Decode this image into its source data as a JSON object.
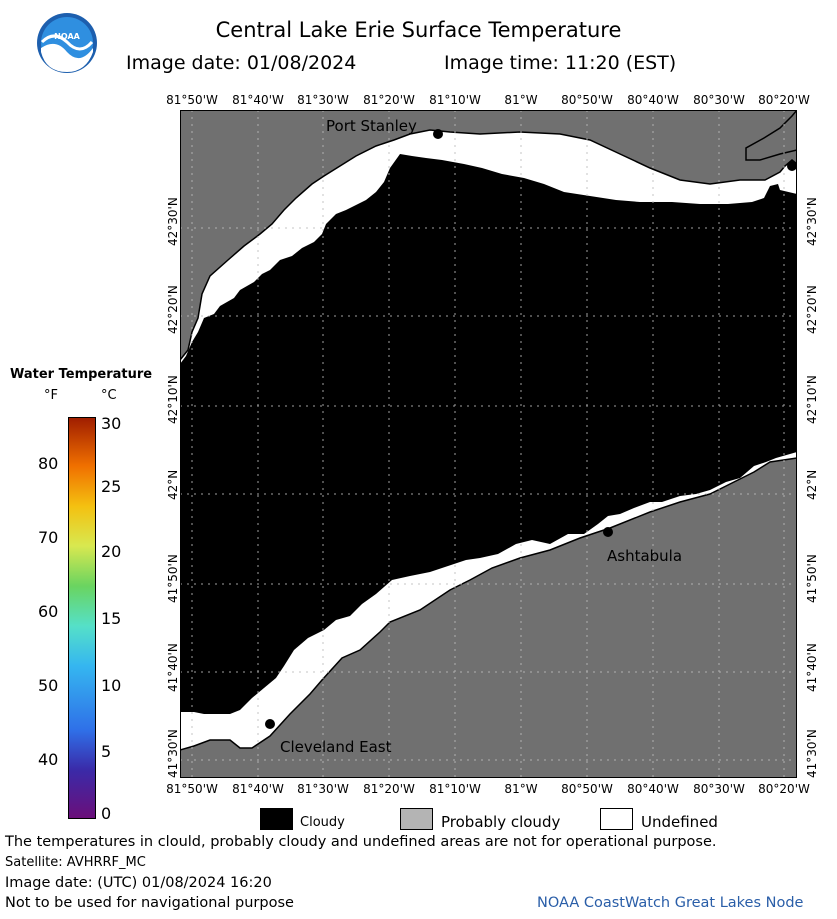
{
  "header": {
    "title": "Central Lake Erie Surface Temperature",
    "image_date": "Image date: 01/08/2024",
    "image_time": "Image time: 11:20 (EST)",
    "logo_text": "NOAA"
  },
  "map": {
    "lon_labels": [
      "81°50'W",
      "81°40'W",
      "81°30'W",
      "81°20'W",
      "81°10'W",
      "81°W",
      "80°50'W",
      "80°40'W",
      "80°30'W",
      "80°20'W"
    ],
    "lat_labels": [
      "42°30'N",
      "42°20'N",
      "42°10'N",
      "42°N",
      "41°50'N",
      "41°40'N",
      "41°30'N"
    ],
    "places": [
      "Port Stanley",
      "Ashtabula",
      "Cleveland East"
    ],
    "colors": {
      "land": "#707070",
      "cloudy": "#000000",
      "undefined": "#ffffff",
      "probably_cloudy": "#b4b4b4"
    }
  },
  "scale": {
    "title": "Water Temperature",
    "unit_f": "°F",
    "unit_c": "°C",
    "f_ticks": [
      "80",
      "70",
      "60",
      "50",
      "40"
    ],
    "c_ticks": [
      "30",
      "25",
      "20",
      "15",
      "10",
      "5",
      "0"
    ]
  },
  "legend": {
    "cloudy": "Cloudy",
    "probably_cloudy": "Probably cloudy",
    "undefined": "Undefined"
  },
  "footer": {
    "disclaimer": "The temperatures in clould, probably cloudy and undefined areas are not for operational purpose.",
    "satellite": "Satellite: AVHRRF_MC",
    "utc_date": "Image date: (UTC) 01/08/2024  16:20",
    "nav_warning": "Not to be used for navigational purpose",
    "credit": "NOAA CoastWatch Great Lakes Node"
  }
}
